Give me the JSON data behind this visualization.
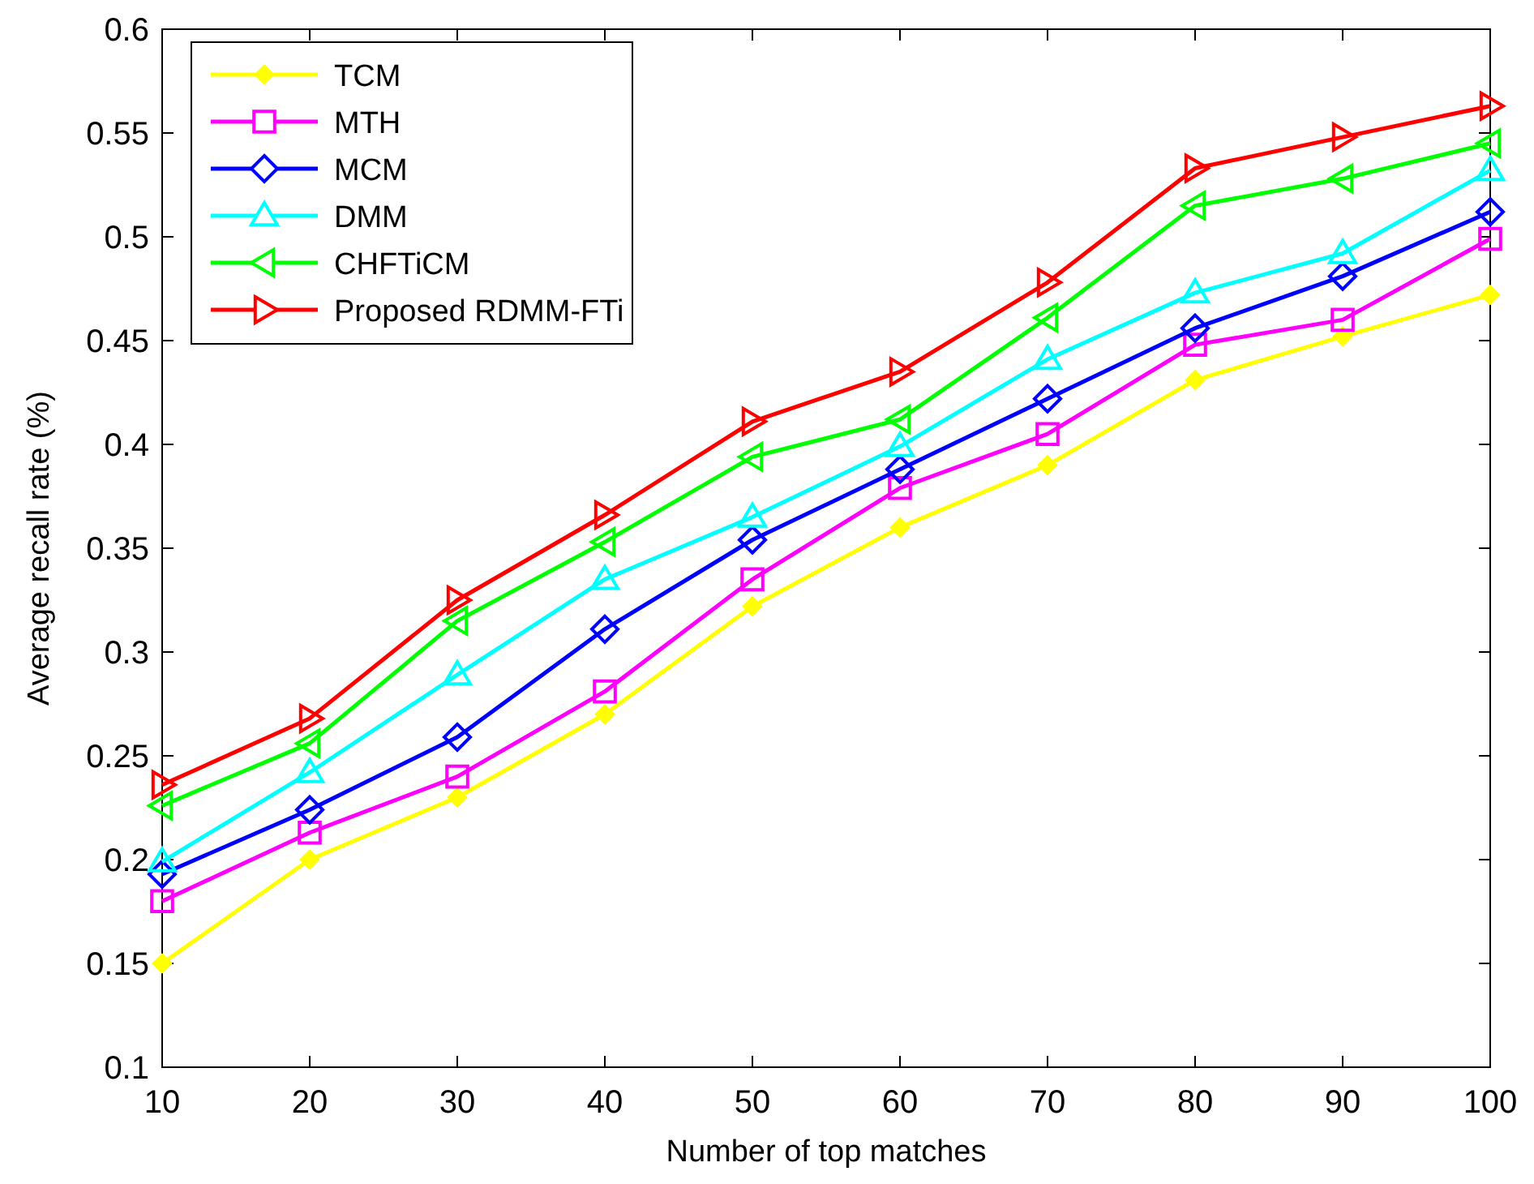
{
  "chart_data": {
    "type": "line",
    "xlabel": "Number of top matches",
    "ylabel": "Average recall rate (%)",
    "x": [
      10,
      20,
      30,
      40,
      50,
      60,
      70,
      80,
      90,
      100
    ],
    "xlim": [
      10,
      100
    ],
    "xticks": [
      10,
      20,
      30,
      40,
      50,
      60,
      70,
      80,
      90,
      100
    ],
    "ylim": [
      0.1,
      0.6
    ],
    "yticks": [
      0.1,
      0.15,
      0.2,
      0.25,
      0.3,
      0.35,
      0.4,
      0.45,
      0.5,
      0.55,
      0.6
    ],
    "grid": false,
    "legend": "top left",
    "series": [
      {
        "name": "TCM",
        "color": "#ffff00",
        "marker": "diamond",
        "values": [
          0.15,
          0.2,
          0.23,
          0.27,
          0.322,
          0.36,
          0.39,
          0.431,
          0.452,
          0.472
        ]
      },
      {
        "name": "MTH",
        "color": "#ff00ff",
        "marker": "square",
        "values": [
          0.18,
          0.213,
          0.24,
          0.281,
          0.335,
          0.379,
          0.405,
          0.448,
          0.46,
          0.499
        ]
      },
      {
        "name": "MCM",
        "color": "#0000ff",
        "marker": "diamond",
        "values": [
          0.193,
          0.224,
          0.259,
          0.311,
          0.354,
          0.388,
          0.422,
          0.456,
          0.481,
          0.512
        ]
      },
      {
        "name": "DMM",
        "color": "#00ffff",
        "marker": "triangle",
        "values": [
          0.199,
          0.242,
          0.289,
          0.335,
          0.365,
          0.399,
          0.441,
          0.473,
          0.492,
          0.532
        ]
      },
      {
        "name": "CHFTiCM",
        "color": "#00ff00",
        "marker": "triangle-left",
        "values": [
          0.226,
          0.256,
          0.315,
          0.353,
          0.394,
          0.412,
          0.461,
          0.515,
          0.528,
          0.545
        ]
      },
      {
        "name": "Proposed RDMM-FTi",
        "color": "#ff0000",
        "marker": "triangle-right",
        "values": [
          0.236,
          0.268,
          0.325,
          0.366,
          0.411,
          0.435,
          0.478,
          0.533,
          0.548,
          0.563
        ]
      }
    ]
  }
}
